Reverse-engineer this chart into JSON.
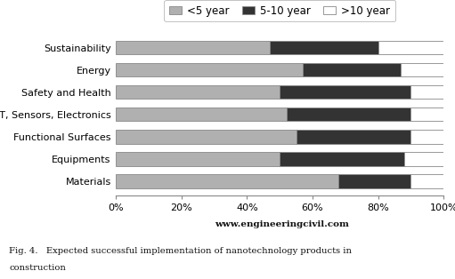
{
  "categories": [
    "Materials",
    "Equipments",
    "Functional Surfaces",
    "IT, Sensors, Electronics",
    "Safety and Health",
    "Energy",
    "Sustainability"
  ],
  "series": [
    {
      "label": "<5 year",
      "color": "#b0b0b0",
      "values": [
        68,
        50,
        55,
        52,
        50,
        57,
        47
      ]
    },
    {
      "label": "5-10 year",
      "color": "#333333",
      "values": [
        22,
        38,
        35,
        38,
        40,
        30,
        33
      ]
    },
    {
      "label": ">10 year",
      "color": "#ffffff",
      "values": [
        10,
        12,
        10,
        10,
        10,
        13,
        20
      ]
    }
  ],
  "xlabel_ticks": [
    0,
    20,
    40,
    60,
    80,
    100
  ],
  "xlabel_labels": [
    "0%",
    "20%",
    "40%",
    "60%",
    "80%",
    "100%"
  ],
  "bar_edgecolor": "#888888",
  "bar_height": 0.62,
  "background_color": "#ffffff",
  "legend_fontsize": 8.5,
  "tick_fontsize": 8,
  "category_fontsize": 8,
  "watermark": "www.engineeringcivil.com",
  "caption_line1": "Fig. 4.   Expected successful implementation of nanotechnology products in",
  "caption_line2": "construction"
}
